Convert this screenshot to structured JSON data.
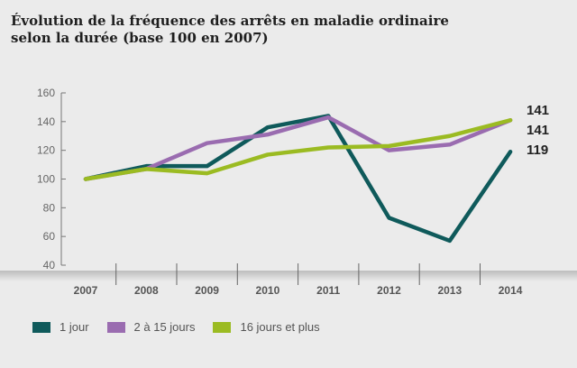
{
  "chart_data": {
    "type": "line",
    "title": "Évolution de la fréquence des arrêts en maladie ordinaire selon la durée (base 100 en 2007)",
    "title_lines": [
      "Évolution de la fréquence des arrêts en maladie ordinaire",
      "selon la durée (base 100 en 2007)"
    ],
    "xlabel": "",
    "ylabel": "",
    "x": [
      "2007",
      "2008",
      "2009",
      "2010",
      "2011",
      "2012",
      "2013",
      "2014"
    ],
    "ylim": [
      40,
      160
    ],
    "yticks": [
      40,
      60,
      80,
      100,
      120,
      140,
      160
    ],
    "grid": false,
    "legend_position": "bottom-left",
    "series": [
      {
        "name": "1 jour",
        "color": "#0f5a5b",
        "values": [
          100,
          109,
          109,
          136,
          144,
          73,
          57,
          119
        ],
        "end_label": "119"
      },
      {
        "name": "2 à 15 jours",
        "color": "#9a6cb0",
        "values": [
          100,
          107,
          125,
          131,
          143,
          120,
          124,
          141
        ],
        "end_label": "141"
      },
      {
        "name": "16 jours et plus",
        "color": "#9bbb22",
        "values": [
          100,
          107,
          104,
          117,
          122,
          123,
          130,
          141
        ],
        "end_label": "141"
      }
    ]
  }
}
